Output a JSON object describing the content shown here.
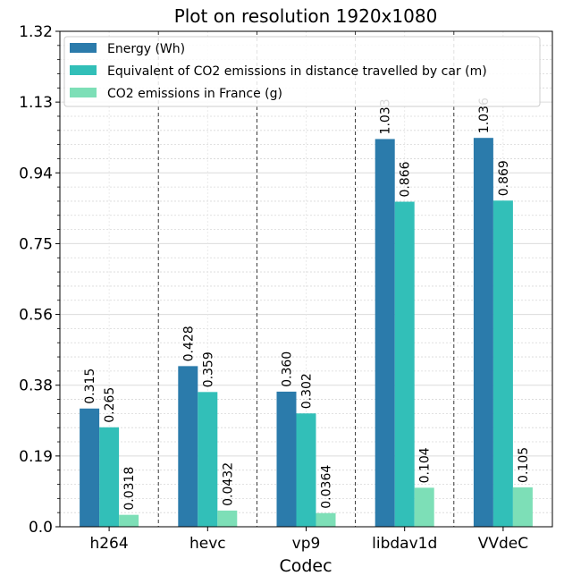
{
  "chart_data": {
    "type": "bar",
    "title": "Plot on resolution 1920x1080",
    "xlabel": "Codec",
    "ylabel": "",
    "categories": [
      "h264",
      "hevc",
      "vp9",
      "libdav1d",
      "VVdeC"
    ],
    "ylim": [
      0.0,
      1.32
    ],
    "yticks": [
      "0.0",
      "0.19",
      "0.38",
      "0.56",
      "0.75",
      "0.94",
      "1.13",
      "1.32"
    ],
    "grid": true,
    "legend_position": "top",
    "series": [
      {
        "name": "Energy (Wh)",
        "color": "#2b7bab",
        "values": [
          0.315,
          0.428,
          0.36,
          1.033,
          1.036
        ],
        "labels": [
          "0.315",
          "0.428",
          "0.360",
          "1.033",
          "1.036"
        ]
      },
      {
        "name": "Equivalent of CO2 emissions in distance travelled by car (m)",
        "color": "#32bfb8",
        "values": [
          0.265,
          0.359,
          0.302,
          0.866,
          0.869
        ],
        "labels": [
          "0.265",
          "0.359",
          "0.302",
          "0.866",
          "0.869"
        ]
      },
      {
        "name": "CO2 emissions in France (g)",
        "color": "#7ddfb7",
        "values": [
          0.0318,
          0.0432,
          0.0364,
          0.104,
          0.105
        ],
        "labels": [
          "0.0318",
          "0.0432",
          "0.0364",
          "0.104",
          "0.105"
        ]
      }
    ]
  }
}
